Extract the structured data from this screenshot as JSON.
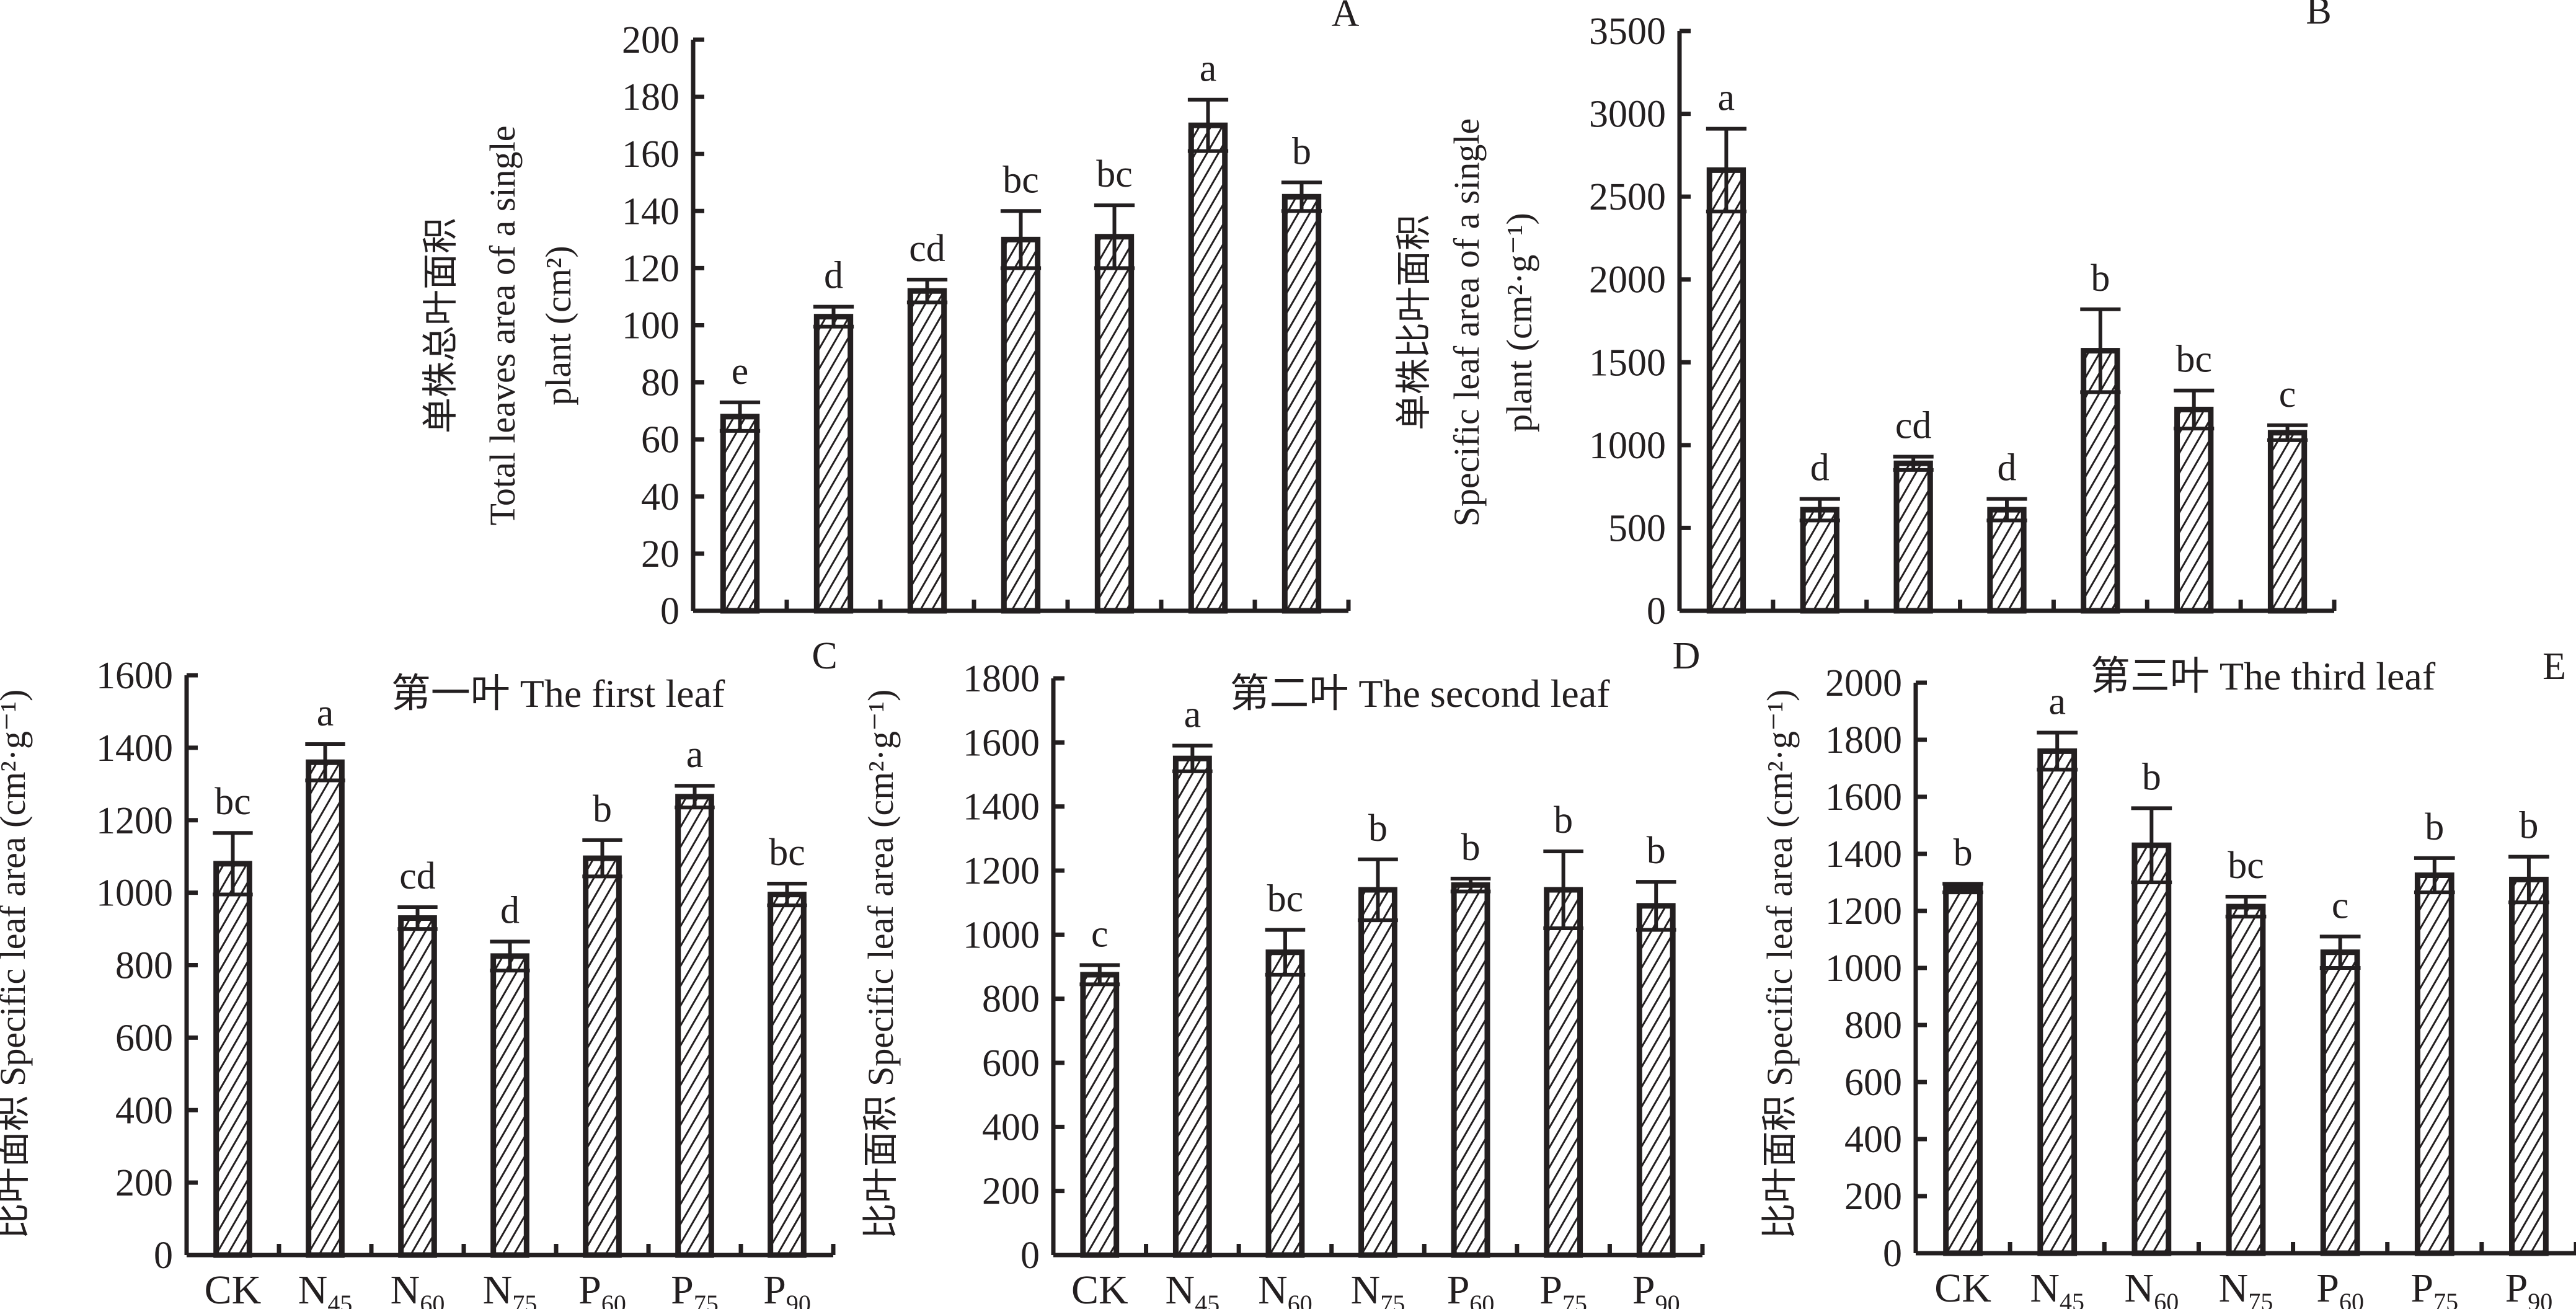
{
  "figure": {
    "categories_display": [
      {
        "base": "CK",
        "sub": ""
      },
      {
        "base": "N",
        "sub": "45"
      },
      {
        "base": "N",
        "sub": "60"
      },
      {
        "base": "N",
        "sub": "75"
      },
      {
        "base": "P",
        "sub": "60"
      },
      {
        "base": "P",
        "sub": "75"
      },
      {
        "base": "P",
        "sub": "90"
      }
    ],
    "bar_pattern": "diagonal-hatch",
    "ink_color": "#231f20",
    "background_color": "#ffffff"
  },
  "chart_data": [
    {
      "panel": "A",
      "type": "bar",
      "title": "",
      "ylabel_lines": [
        "单株总叶面积",
        "Total leaves area of a single",
        "plant (cm²)"
      ],
      "xlabel": "",
      "categories": [
        "CK",
        "N45",
        "N60",
        "N75",
        "P60",
        "P75",
        "P90"
      ],
      "show_category_labels": false,
      "values": [
        68,
        103,
        112,
        130,
        131,
        170,
        145
      ],
      "errors": [
        5,
        3.5,
        4,
        10,
        11,
        9,
        5
      ],
      "significance": [
        "e",
        "d",
        "cd",
        "bc",
        "bc",
        "a",
        "b"
      ],
      "ylim": [
        0,
        200
      ],
      "yticks": [
        0,
        20,
        40,
        60,
        80,
        100,
        120,
        140,
        160,
        180,
        200
      ],
      "grid": false
    },
    {
      "panel": "B",
      "type": "bar",
      "title": "",
      "ylabel_lines": [
        "单株比叶面积",
        "Specific leaf area of a single",
        "plant (cm²·g⁻¹)"
      ],
      "xlabel": "",
      "categories": [
        "CK",
        "N45",
        "N60",
        "N75",
        "P60",
        "P75",
        "P90"
      ],
      "show_category_labels": false,
      "values": [
        2660,
        610,
        890,
        610,
        1570,
        1215,
        1075
      ],
      "errors": [
        250,
        65,
        40,
        65,
        250,
        115,
        45
      ],
      "significance": [
        "a",
        "d",
        "cd",
        "d",
        "b",
        "bc",
        "c"
      ],
      "ylim": [
        0,
        3500
      ],
      "yticks": [
        0,
        500,
        1000,
        1500,
        2000,
        2500,
        3000,
        3500
      ],
      "grid": false
    },
    {
      "panel": "C",
      "type": "bar",
      "title": "第一叶 The first leaf",
      "ylabel_lines": [
        "比叶面积 Specific leaf area (cm²·g⁻¹)"
      ],
      "xlabel": "",
      "categories": [
        "CK",
        "N45",
        "N60",
        "N75",
        "P60",
        "P75",
        "P90"
      ],
      "show_category_labels": true,
      "values": [
        1080,
        1360,
        930,
        825,
        1095,
        1265,
        995
      ],
      "errors": [
        85,
        50,
        30,
        40,
        50,
        30,
        30
      ],
      "significance": [
        "bc",
        "a",
        "cd",
        "d",
        "b",
        "a",
        "bc"
      ],
      "ylim": [
        0,
        1600
      ],
      "yticks": [
        0,
        200,
        400,
        600,
        800,
        1000,
        1200,
        1400,
        1600
      ],
      "grid": false
    },
    {
      "panel": "D",
      "type": "bar",
      "title": "第二叶 The second leaf",
      "ylabel_lines": [
        "比叶面积 Specific leaf area (cm²·g⁻¹)"
      ],
      "xlabel": "",
      "categories": [
        "CK",
        "N45",
        "N60",
        "N75",
        "P60",
        "P75",
        "P90"
      ],
      "show_category_labels": true,
      "values": [
        875,
        1550,
        945,
        1140,
        1155,
        1140,
        1090
      ],
      "errors": [
        30,
        40,
        70,
        95,
        20,
        120,
        75
      ],
      "significance": [
        "c",
        "a",
        "bc",
        "b",
        "b",
        "b",
        "b"
      ],
      "ylim": [
        0,
        1800
      ],
      "yticks": [
        0,
        200,
        400,
        600,
        800,
        1000,
        1200,
        1400,
        1600,
        1800
      ],
      "grid": false
    },
    {
      "panel": "E",
      "type": "bar",
      "title": "第三叶 The third leaf",
      "ylabel_lines": [
        "比叶面积 Specific leaf area (cm²·g⁻¹)"
      ],
      "xlabel": "",
      "categories": [
        "CK",
        "N45",
        "N60",
        "N75",
        "P60",
        "P75",
        "P90"
      ],
      "show_category_labels": true,
      "values": [
        1280,
        1760,
        1430,
        1215,
        1055,
        1325,
        1310
      ],
      "errors": [
        15,
        65,
        130,
        35,
        55,
        60,
        80
      ],
      "significance": [
        "b",
        "a",
        "b",
        "bc",
        "c",
        "b",
        "b"
      ],
      "ylim": [
        0,
        2000
      ],
      "yticks": [
        0,
        200,
        400,
        600,
        800,
        1000,
        1200,
        1400,
        1600,
        1800,
        2000
      ],
      "grid": false
    }
  ]
}
